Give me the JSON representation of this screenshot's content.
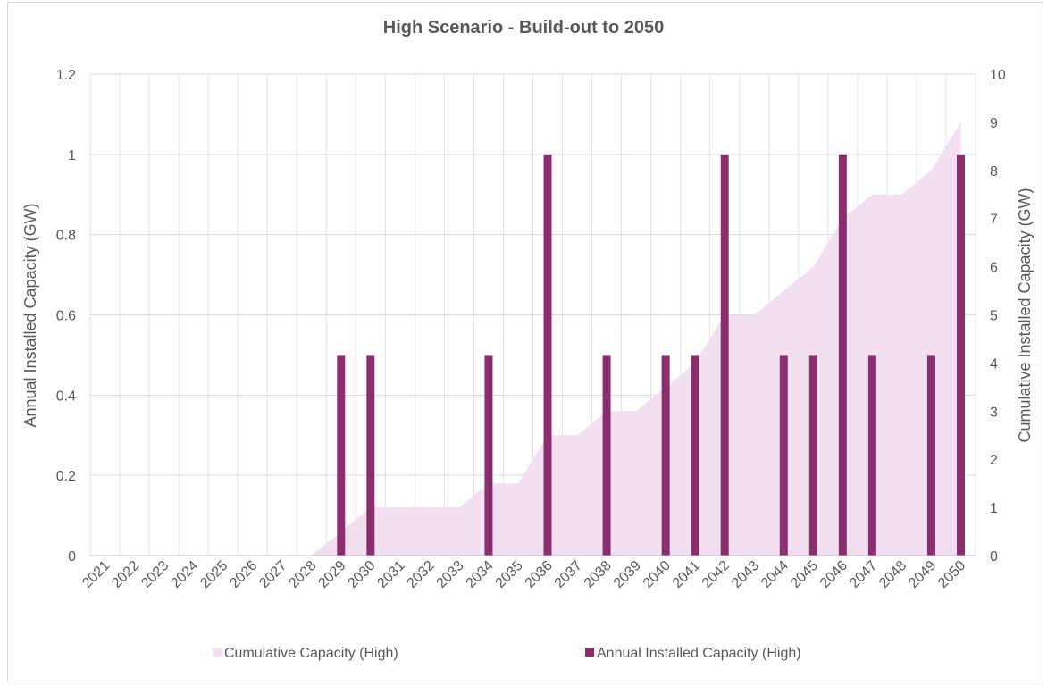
{
  "chart_data": {
    "type": "bar",
    "title": "High Scenario - Build-out to 2050",
    "categories": [
      "2021",
      "2022",
      "2023",
      "2024",
      "2025",
      "2026",
      "2027",
      "2028",
      "2029",
      "2030",
      "2031",
      "2032",
      "2033",
      "2034",
      "2035",
      "2036",
      "2037",
      "2038",
      "2039",
      "2040",
      "2041",
      "2042",
      "2043",
      "2044",
      "2045",
      "2046",
      "2047",
      "2048",
      "2049",
      "2050"
    ],
    "series": [
      {
        "name": "Cumulative Capacity (High)",
        "type": "area",
        "axis": "right",
        "color": "#f2dff0",
        "values": [
          0,
          0,
          0,
          0,
          0,
          0,
          0,
          0,
          0.5,
          1,
          1,
          1,
          1,
          1.5,
          1.5,
          2.5,
          2.5,
          3,
          3,
          3.5,
          4,
          5,
          5,
          5.5,
          6,
          7,
          7.5,
          7.5,
          8,
          9
        ]
      },
      {
        "name": "Annual Installed Capacity (High)",
        "type": "bar",
        "axis": "left",
        "color": "#8b2d6e",
        "values": [
          0,
          0,
          0,
          0,
          0,
          0,
          0,
          0,
          0.5,
          0.5,
          0,
          0,
          0,
          0.5,
          0,
          1,
          0,
          0.5,
          0,
          0.5,
          0.5,
          1,
          0,
          0.5,
          0.5,
          1,
          0.5,
          0,
          0.5,
          1
        ]
      }
    ],
    "ylabel": "Annual Installed Capacity (GW)",
    "ylim": [
      0,
      1.2
    ],
    "yticks": [
      "0",
      "0.2",
      "0.4",
      "0.6",
      "0.8",
      "1",
      "1.2"
    ],
    "y2label": "Cumulative Installed Capacity (GW)",
    "y2lim": [
      0,
      10
    ],
    "y2ticks": [
      "0",
      "1",
      "2",
      "3",
      "4",
      "5",
      "6",
      "7",
      "8",
      "9",
      "10"
    ],
    "grid": true,
    "legend_position": "bottom"
  }
}
